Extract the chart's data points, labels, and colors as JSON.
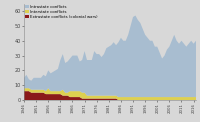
{
  "title": "",
  "legend": [
    "Intrastate conflicts",
    "Interstate conflicts",
    "Extrastate conflicts (colonial wars)"
  ],
  "colors": [
    "#a8bdd0",
    "#ddd050",
    "#8b1a1a"
  ],
  "years": [
    1946,
    1947,
    1948,
    1949,
    1950,
    1951,
    1952,
    1953,
    1954,
    1955,
    1956,
    1957,
    1958,
    1959,
    1960,
    1961,
    1962,
    1963,
    1964,
    1965,
    1966,
    1967,
    1968,
    1969,
    1970,
    1971,
    1972,
    1973,
    1974,
    1975,
    1976,
    1977,
    1978,
    1979,
    1980,
    1981,
    1982,
    1983,
    1984,
    1985,
    1986,
    1987,
    1988,
    1989,
    1990,
    1991,
    1992,
    1993,
    1994,
    1995,
    1996,
    1997,
    1998,
    1999,
    2000,
    2001,
    2002,
    2003,
    2004,
    2005,
    2006,
    2007,
    2008,
    2009,
    2010,
    2011,
    2012,
    2013,
    2014,
    2015,
    2016,
    2017
  ],
  "intrastate": [
    7,
    9,
    6,
    6,
    8,
    8,
    8,
    8,
    10,
    10,
    12,
    12,
    13,
    14,
    15,
    21,
    24,
    20,
    21,
    22,
    24,
    24,
    24,
    20,
    22,
    28,
    24,
    24,
    24,
    30,
    28,
    28,
    26,
    28,
    32,
    33,
    34,
    36,
    34,
    37,
    40,
    38,
    38,
    42,
    48,
    54,
    55,
    52,
    50,
    46,
    42,
    40,
    38,
    38,
    34,
    34,
    30,
    26,
    28,
    32,
    34,
    38,
    42,
    38,
    36,
    38,
    36,
    34,
    36,
    38,
    36,
    38
  ],
  "interstate": [
    2,
    2,
    2,
    2,
    2,
    2,
    2,
    2,
    2,
    2,
    4,
    2,
    2,
    2,
    2,
    2,
    4,
    2,
    2,
    4,
    4,
    4,
    4,
    4,
    4,
    4,
    2,
    2,
    2,
    2,
    2,
    2,
    2,
    2,
    2,
    2,
    2,
    2,
    2,
    2,
    2,
    2,
    2,
    2,
    2,
    2,
    2,
    2,
    2,
    2,
    2,
    2,
    2,
    2,
    2,
    2,
    2,
    2,
    2,
    2,
    2,
    2,
    2,
    2,
    2,
    2,
    2,
    2,
    2,
    2,
    2,
    2
  ],
  "extrastate": [
    6,
    6,
    6,
    5,
    5,
    5,
    5,
    5,
    5,
    4,
    4,
    4,
    4,
    4,
    4,
    4,
    3,
    3,
    3,
    2,
    2,
    2,
    2,
    2,
    1,
    1,
    1,
    1,
    1,
    1,
    1,
    1,
    1,
    1,
    1,
    1,
    1,
    1,
    1,
    0,
    0,
    0,
    0,
    0,
    0,
    0,
    0,
    0,
    0,
    0,
    0,
    0,
    0,
    0,
    0,
    0,
    0,
    0,
    0,
    0,
    0,
    0,
    0,
    0,
    0,
    0,
    0,
    0,
    0,
    0,
    0,
    0
  ],
  "ylim": [
    0,
    65
  ],
  "yticks": [
    0,
    10,
    20,
    30,
    40,
    50,
    60
  ],
  "bg_color": "#d8d8d8",
  "plot_bg": "#d8d8d8",
  "xtick_every": 5
}
